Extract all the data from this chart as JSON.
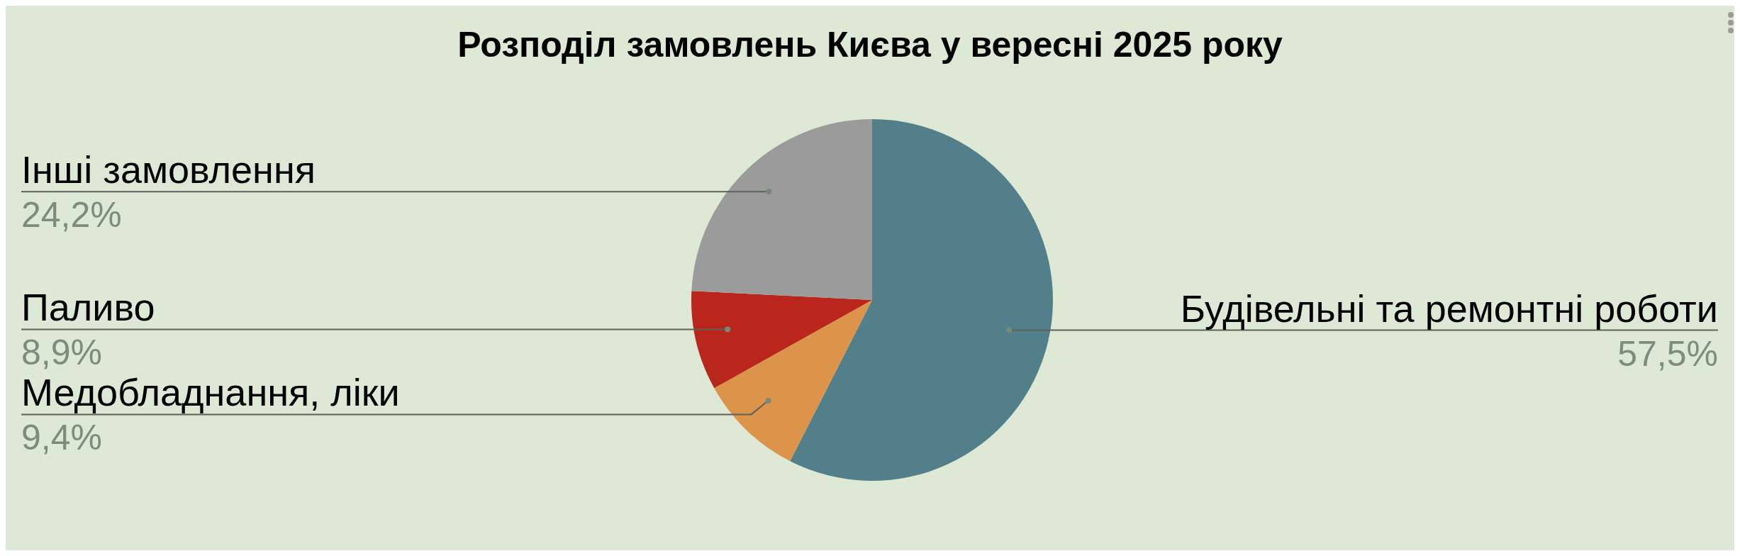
{
  "chart_data": {
    "type": "pie",
    "title": "Розподіл замовлень Києва у вересні 2025 року",
    "categories": [
      "Будівельні та ремонтні роботи",
      "Медобладнання, ліки",
      "Паливо",
      "Інші замовлення"
    ],
    "values": [
      57.5,
      9.4,
      8.9,
      24.2
    ],
    "colors": [
      "#537f8b",
      "#dc944b",
      "#bb261c",
      "#9b9b9b"
    ],
    "value_labels": [
      "57,5%",
      "9,4%",
      "8,9%",
      "24,2%"
    ]
  }
}
